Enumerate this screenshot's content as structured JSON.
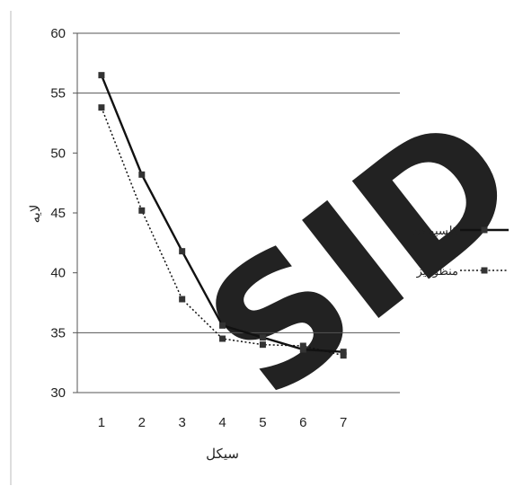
{
  "chart_data": {
    "type": "line",
    "xlabel": "سیکل",
    "ylabel": "لایه",
    "x": [
      1,
      2,
      3,
      4,
      5,
      6,
      7
    ],
    "ylim": [
      30,
      60
    ],
    "yticks": [
      30,
      35,
      40,
      45,
      50,
      55,
      60
    ],
    "grid": {
      "horizontal": true,
      "lines_at": [
        35,
        55,
        60
      ]
    },
    "legend_position": "right",
    "series": [
      {
        "name": "کلسیو دی",
        "style": "solid",
        "color": "#111111",
        "values": [
          56.5,
          48.2,
          41.8,
          35.6,
          34.6,
          33.6,
          33.4
        ]
      },
      {
        "name": "منظومیز",
        "style": "dotted",
        "color": "#111111",
        "values": [
          53.8,
          45.2,
          37.8,
          34.5,
          34.0,
          33.9,
          33.1
        ]
      }
    ]
  },
  "watermark": {
    "text": "SID",
    "color": "#e6e6e6"
  }
}
